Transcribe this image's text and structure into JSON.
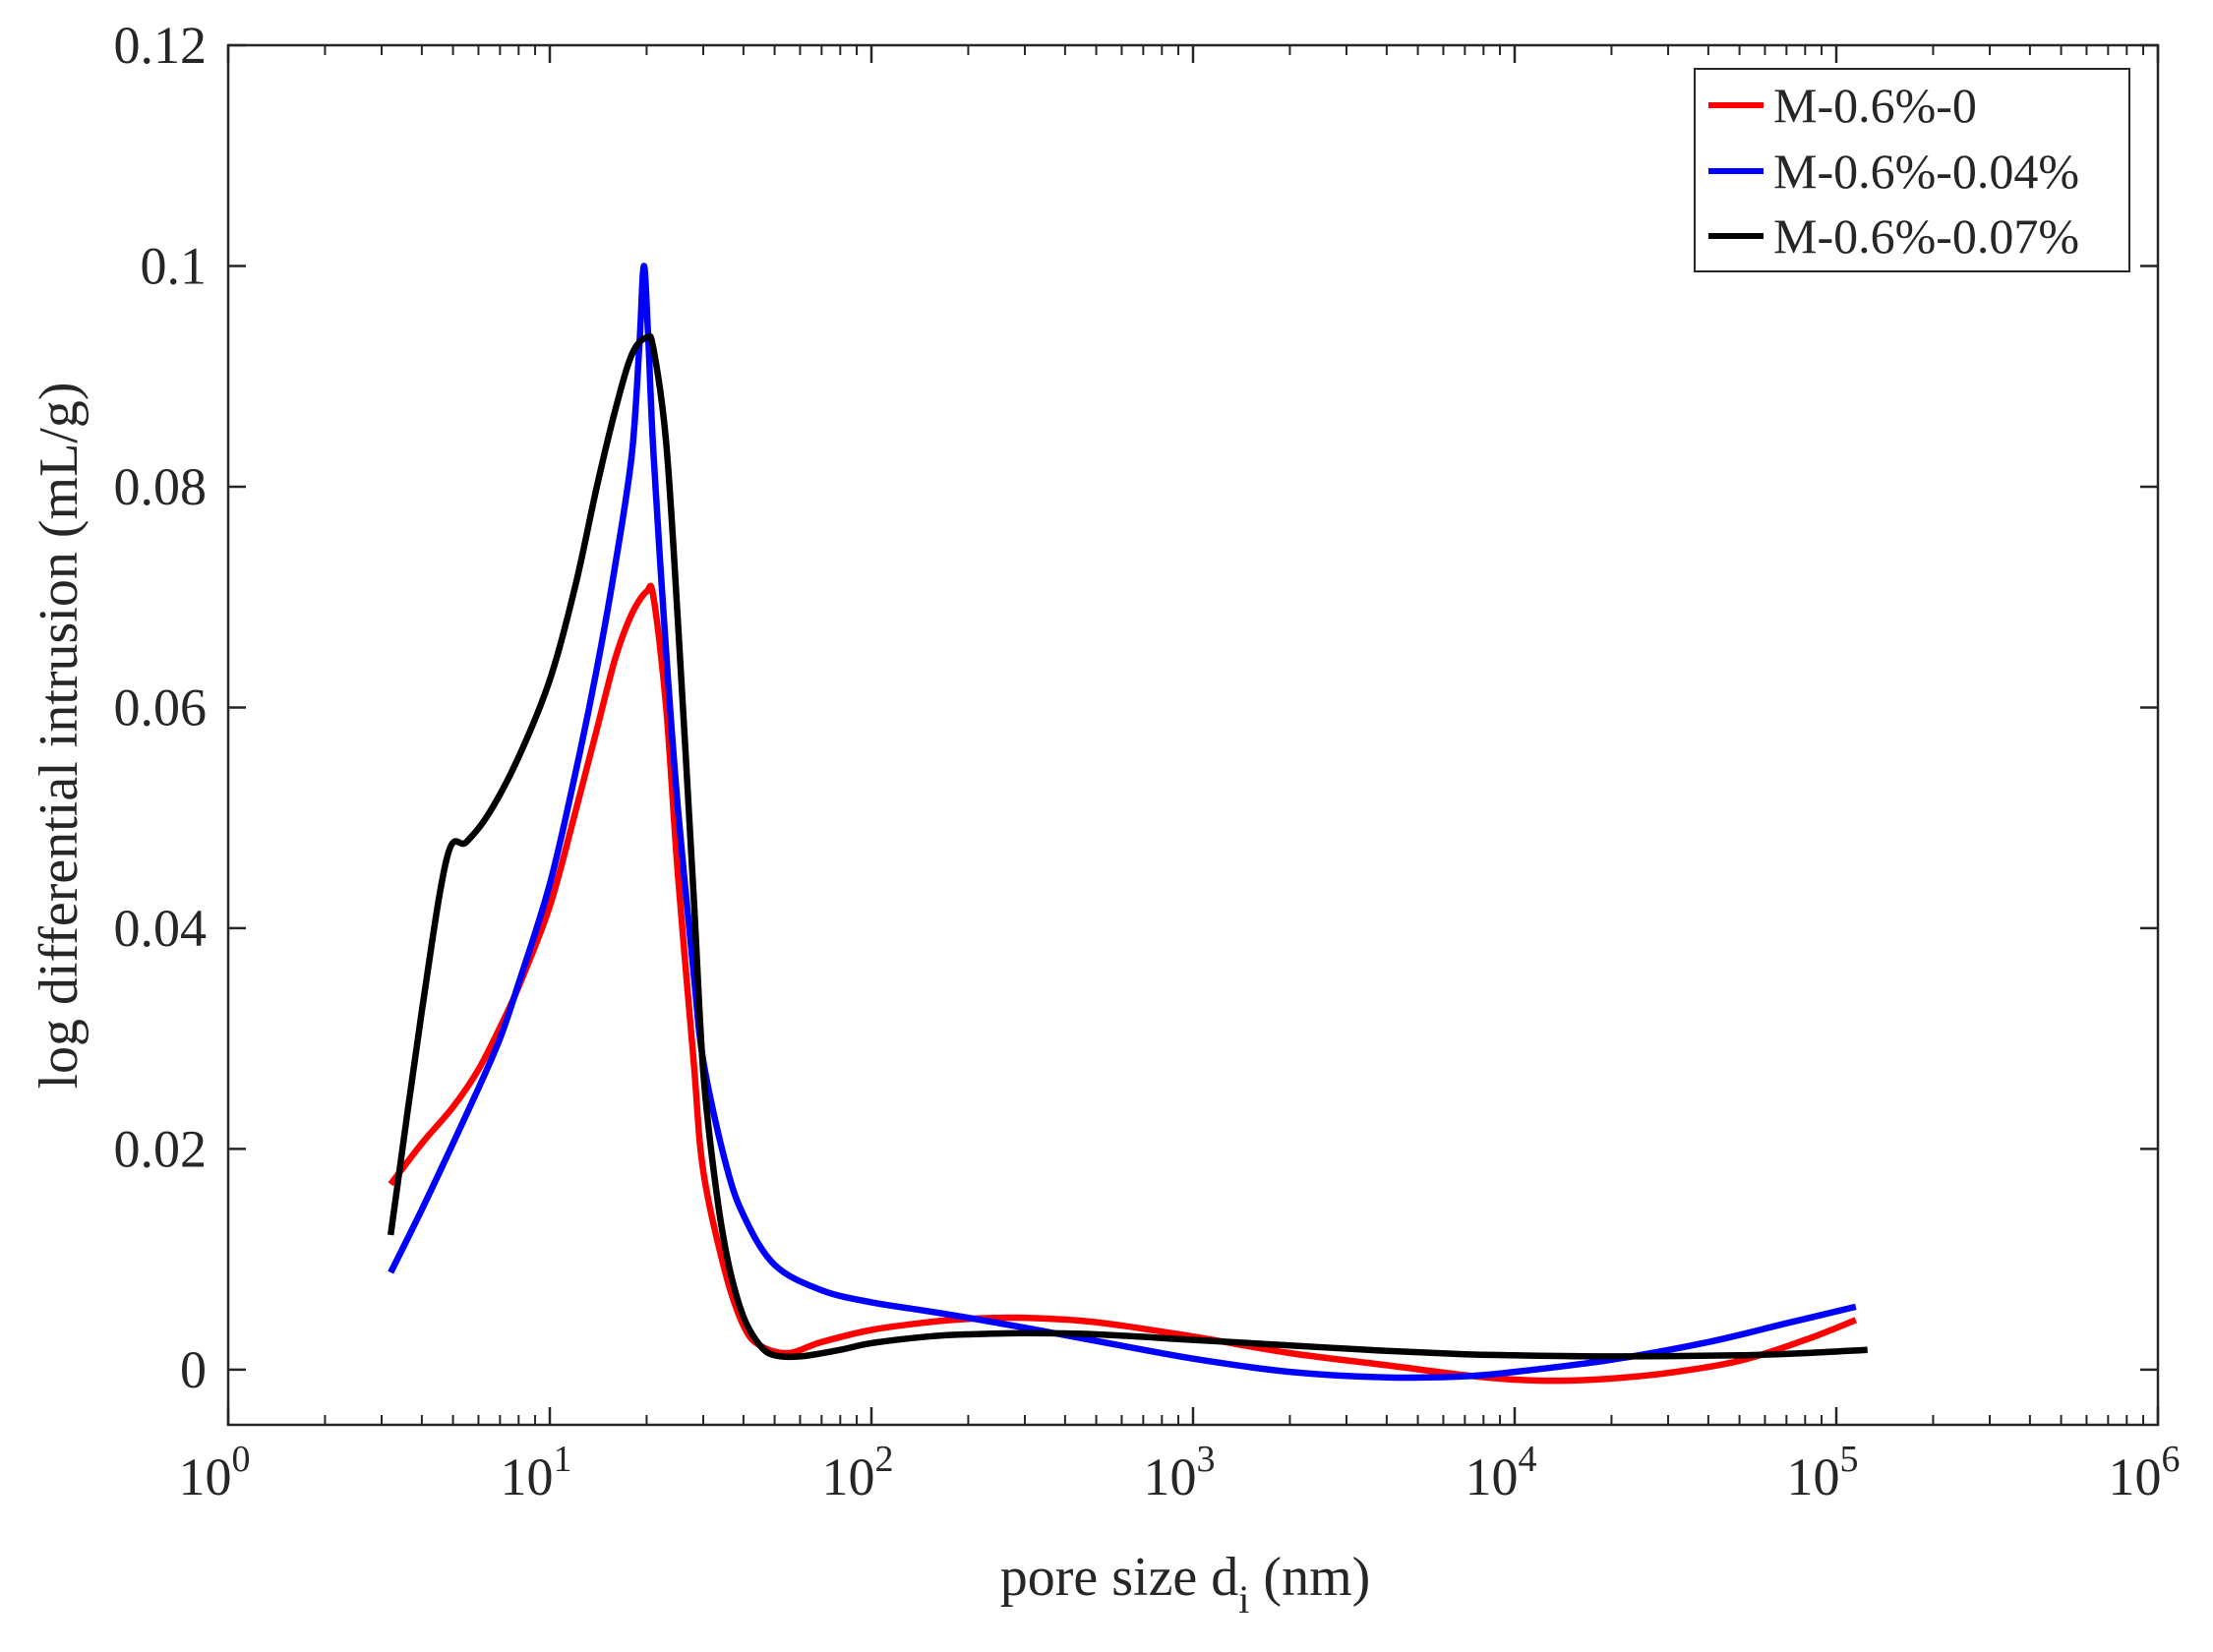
{
  "chart_data": {
    "type": "line",
    "xscale": "log",
    "xlabel": "pore size d",
    "xlabel_sub": "i",
    "xlabel_unit": "(nm)",
    "ylabel": "log differential intrusion (mL/g)",
    "xlim": [
      1,
      1000000
    ],
    "ylim": [
      -0.005,
      0.12
    ],
    "x_ticks": [
      {
        "value": 1,
        "base": "10",
        "exp": "0"
      },
      {
        "value": 10,
        "base": "10",
        "exp": "1"
      },
      {
        "value": 100,
        "base": "10",
        "exp": "2"
      },
      {
        "value": 1000,
        "base": "10",
        "exp": "3"
      },
      {
        "value": 10000,
        "base": "10",
        "exp": "4"
      },
      {
        "value": 100000,
        "base": "10",
        "exp": "5"
      },
      {
        "value": 1000000,
        "base": "10",
        "exp": "6"
      }
    ],
    "y_ticks": [
      {
        "value": 0,
        "label": "0"
      },
      {
        "value": 0.02,
        "label": "0.02"
      },
      {
        "value": 0.04,
        "label": "0.04"
      },
      {
        "value": 0.06,
        "label": "0.06"
      },
      {
        "value": 0.08,
        "label": "0.08"
      },
      {
        "value": 0.1,
        "label": "0.1"
      },
      {
        "value": 0.12,
        "label": "0.12"
      }
    ],
    "legend_position": "top-right",
    "series": [
      {
        "name": "M-0.6%-0",
        "color": "#ff0000",
        "points": [
          [
            3.2,
            0.0168
          ],
          [
            4,
            0.0205
          ],
          [
            5,
            0.0238
          ],
          [
            6,
            0.0272
          ],
          [
            7,
            0.031
          ],
          [
            8,
            0.0347
          ],
          [
            10,
            0.042
          ],
          [
            12,
            0.0505
          ],
          [
            14,
            0.058
          ],
          [
            16,
            0.0645
          ],
          [
            18,
            0.0685
          ],
          [
            20,
            0.0705
          ],
          [
            21,
            0.07
          ],
          [
            23,
            0.06
          ],
          [
            25,
            0.045
          ],
          [
            28,
            0.028
          ],
          [
            30,
            0.018
          ],
          [
            35,
            0.009
          ],
          [
            40,
            0.004
          ],
          [
            45,
            0.0022
          ],
          [
            55,
            0.0015
          ],
          [
            70,
            0.0025
          ],
          [
            100,
            0.0036
          ],
          [
            150,
            0.0043
          ],
          [
            200,
            0.0046
          ],
          [
            300,
            0.0047
          ],
          [
            500,
            0.0043
          ],
          [
            1000,
            0.003
          ],
          [
            2000,
            0.0015
          ],
          [
            4000,
            0.0004
          ],
          [
            7000,
            -0.0005
          ],
          [
            10000,
            -0.0009
          ],
          [
            14000,
            -0.001
          ],
          [
            20000,
            -0.0008
          ],
          [
            30000,
            -0.0003
          ],
          [
            50000,
            0.0008
          ],
          [
            80000,
            0.0027
          ],
          [
            115000,
            0.0045
          ]
        ]
      },
      {
        "name": "M-0.6%-0.04%",
        "color": "#0000ff",
        "points": [
          [
            3.2,
            0.0088
          ],
          [
            4,
            0.0145
          ],
          [
            5,
            0.0205
          ],
          [
            6,
            0.0255
          ],
          [
            7,
            0.03
          ],
          [
            8,
            0.035
          ],
          [
            10,
            0.044
          ],
          [
            12,
            0.054
          ],
          [
            14,
            0.0635
          ],
          [
            16,
            0.073
          ],
          [
            18,
            0.083
          ],
          [
            19,
            0.093
          ],
          [
            19.6,
            0.1
          ],
          [
            20.2,
            0.094
          ],
          [
            21,
            0.083
          ],
          [
            23,
            0.065
          ],
          [
            25,
            0.051
          ],
          [
            28,
            0.036
          ],
          [
            30,
            0.028
          ],
          [
            35,
            0.019
          ],
          [
            40,
            0.014
          ],
          [
            50,
            0.0095
          ],
          [
            70,
            0.0072
          ],
          [
            100,
            0.0061
          ],
          [
            150,
            0.0053
          ],
          [
            200,
            0.0047
          ],
          [
            300,
            0.0038
          ],
          [
            500,
            0.0026
          ],
          [
            1000,
            0.001
          ],
          [
            2000,
            -0.0002
          ],
          [
            4000,
            -0.0007
          ],
          [
            7000,
            -0.0006
          ],
          [
            10000,
            -0.0002
          ],
          [
            20000,
            0.0009
          ],
          [
            40000,
            0.0025
          ],
          [
            70000,
            0.0042
          ],
          [
            115000,
            0.0057
          ]
        ]
      },
      {
        "name": "M-0.6%-0.07%",
        "color": "#000000",
        "points": [
          [
            3.2,
            0.0122
          ],
          [
            4,
            0.0325
          ],
          [
            4.8,
            0.0465
          ],
          [
            5.5,
            0.0478
          ],
          [
            6.5,
            0.0505
          ],
          [
            8,
            0.0555
          ],
          [
            10,
            0.0625
          ],
          [
            12,
            0.071
          ],
          [
            14,
            0.08
          ],
          [
            16,
            0.087
          ],
          [
            18,
            0.092
          ],
          [
            20,
            0.0935
          ],
          [
            21,
            0.0925
          ],
          [
            23,
            0.084
          ],
          [
            25,
            0.068
          ],
          [
            28,
            0.043
          ],
          [
            30,
            0.027
          ],
          [
            33,
            0.016
          ],
          [
            36,
            0.0095
          ],
          [
            40,
            0.0048
          ],
          [
            45,
            0.0022
          ],
          [
            50,
            0.0013
          ],
          [
            60,
            0.0012
          ],
          [
            80,
            0.0018
          ],
          [
            100,
            0.0024
          ],
          [
            150,
            0.003
          ],
          [
            200,
            0.0032
          ],
          [
            300,
            0.0033
          ],
          [
            500,
            0.0032
          ],
          [
            1000,
            0.0027
          ],
          [
            2000,
            0.0022
          ],
          [
            4000,
            0.0017
          ],
          [
            7000,
            0.0014
          ],
          [
            10000,
            0.0013
          ],
          [
            20000,
            0.0012
          ],
          [
            50000,
            0.0013
          ],
          [
            80000,
            0.0015
          ],
          [
            125000,
            0.0018
          ]
        ]
      }
    ]
  }
}
